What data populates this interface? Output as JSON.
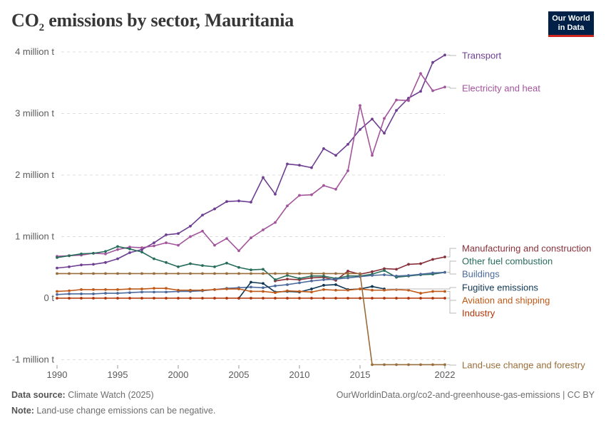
{
  "header": {
    "title_main": "CO",
    "title_sub": "2",
    "title_rest": " emissions by sector, Mauritania",
    "logo_line1": "Our World",
    "logo_line2": "in Data"
  },
  "footer": {
    "source_label": "Data source:",
    "source_text": " Climate Watch (2025)",
    "note_label": "Note:",
    "note_text": " Land-use change emissions can be negative.",
    "url": "OurWorldinData.org/co2-and-greenhouse-gas-emissions | CC BY"
  },
  "chart_data": {
    "type": "line",
    "title": "CO₂ emissions by sector, Mauritania",
    "ylim": [
      -1000000,
      4000000
    ],
    "xlim": [
      1990,
      2022
    ],
    "y_ticks": [
      {
        "value": 4000000,
        "label": "4 million t"
      },
      {
        "value": 3000000,
        "label": "3 million t"
      },
      {
        "value": 2000000,
        "label": "2 million t"
      },
      {
        "value": 1000000,
        "label": "1 million t"
      },
      {
        "value": 0,
        "label": "0 t"
      },
      {
        "value": -1000000,
        "label": "-1 million t"
      }
    ],
    "x_ticks": [
      1990,
      1995,
      2000,
      2005,
      2010,
      2015,
      2022
    ],
    "grid": true,
    "x": [
      1990,
      1991,
      1992,
      1993,
      1994,
      1995,
      1996,
      1997,
      1998,
      1999,
      2000,
      2001,
      2002,
      2003,
      2004,
      2005,
      2006,
      2007,
      2008,
      2009,
      2010,
      2011,
      2012,
      2013,
      2014,
      2015,
      2016,
      2017,
      2018,
      2019,
      2020,
      2021,
      2022
    ],
    "series": [
      {
        "name": "Transport",
        "color": "#6d3e91",
        "values": [
          490000,
          510000,
          540000,
          550000,
          580000,
          640000,
          740000,
          790000,
          900000,
          1030000,
          1050000,
          1170000,
          1350000,
          1450000,
          1570000,
          1580000,
          1560000,
          1960000,
          1690000,
          2180000,
          2160000,
          2120000,
          2430000,
          2320000,
          2500000,
          2740000,
          2910000,
          2680000,
          3050000,
          3250000,
          3360000,
          3830000,
          3950000
        ]
      },
      {
        "name": "Electricity and heat",
        "color": "#a2559c",
        "values": [
          680000,
          690000,
          700000,
          730000,
          720000,
          790000,
          830000,
          820000,
          850000,
          900000,
          860000,
          1000000,
          1090000,
          860000,
          970000,
          770000,
          980000,
          1110000,
          1230000,
          1500000,
          1670000,
          1680000,
          1830000,
          1770000,
          2070000,
          3130000,
          2320000,
          2920000,
          3220000,
          3210000,
          3650000,
          3370000,
          3430000
        ]
      },
      {
        "name": "Manufacturing and construction",
        "color": "#883039",
        "values": [
          null,
          null,
          null,
          null,
          null,
          null,
          null,
          null,
          null,
          null,
          null,
          null,
          null,
          null,
          null,
          null,
          null,
          null,
          280000,
          310000,
          300000,
          330000,
          340000,
          290000,
          440000,
          390000,
          430000,
          480000,
          470000,
          550000,
          560000,
          630000,
          670000
        ]
      },
      {
        "name": "Other fuel combustion",
        "color": "#286d5c",
        "values": [
          660000,
          690000,
          720000,
          730000,
          760000,
          840000,
          800000,
          750000,
          640000,
          580000,
          510000,
          560000,
          530000,
          510000,
          570000,
          500000,
          460000,
          470000,
          300000,
          370000,
          320000,
          360000,
          360000,
          320000,
          360000,
          360000,
          390000,
          450000,
          340000,
          360000,
          380000,
          390000,
          420000
        ]
      },
      {
        "name": "Buildings",
        "color": "#4c6a9c",
        "values": [
          60000,
          70000,
          70000,
          70000,
          80000,
          80000,
          90000,
          100000,
          100000,
          100000,
          110000,
          110000,
          120000,
          140000,
          160000,
          170000,
          180000,
          170000,
          200000,
          220000,
          250000,
          280000,
          300000,
          310000,
          330000,
          350000,
          370000,
          380000,
          360000,
          370000,
          390000,
          410000,
          420000
        ]
      },
      {
        "name": "Fugitive emissions",
        "color": "#0f3754",
        "values": [
          null,
          null,
          null,
          null,
          null,
          null,
          null,
          null,
          null,
          null,
          null,
          null,
          null,
          null,
          null,
          0,
          260000,
          240000,
          100000,
          110000,
          100000,
          150000,
          210000,
          220000,
          140000,
          150000,
          190000,
          150000,
          null,
          null,
          null,
          null,
          null
        ]
      },
      {
        "name": "Aviation and shipping",
        "color": "#c05917",
        "values": [
          110000,
          120000,
          140000,
          140000,
          140000,
          140000,
          150000,
          150000,
          160000,
          160000,
          130000,
          130000,
          130000,
          140000,
          150000,
          150000,
          110000,
          110000,
          90000,
          120000,
          110000,
          100000,
          140000,
          130000,
          130000,
          150000,
          130000,
          130000,
          140000,
          130000,
          80000,
          110000,
          110000
        ]
      },
      {
        "name": "Industry",
        "color": "#b13507",
        "values": [
          0,
          0,
          0,
          0,
          0,
          0,
          0,
          0,
          0,
          0,
          0,
          0,
          0,
          0,
          0,
          0,
          0,
          0,
          0,
          0,
          0,
          0,
          0,
          0,
          0,
          0,
          0,
          0,
          0,
          0,
          0,
          0,
          0
        ]
      },
      {
        "name": "Land-use change and forestry",
        "color": "#996d39",
        "values": [
          400000,
          400000,
          400000,
          400000,
          400000,
          400000,
          400000,
          400000,
          400000,
          400000,
          400000,
          400000,
          400000,
          400000,
          400000,
          400000,
          400000,
          400000,
          400000,
          400000,
          400000,
          400000,
          400000,
          400000,
          400000,
          400000,
          -1080000,
          -1080000,
          -1080000,
          -1080000,
          -1080000,
          -1080000,
          -1080000
        ]
      }
    ]
  }
}
